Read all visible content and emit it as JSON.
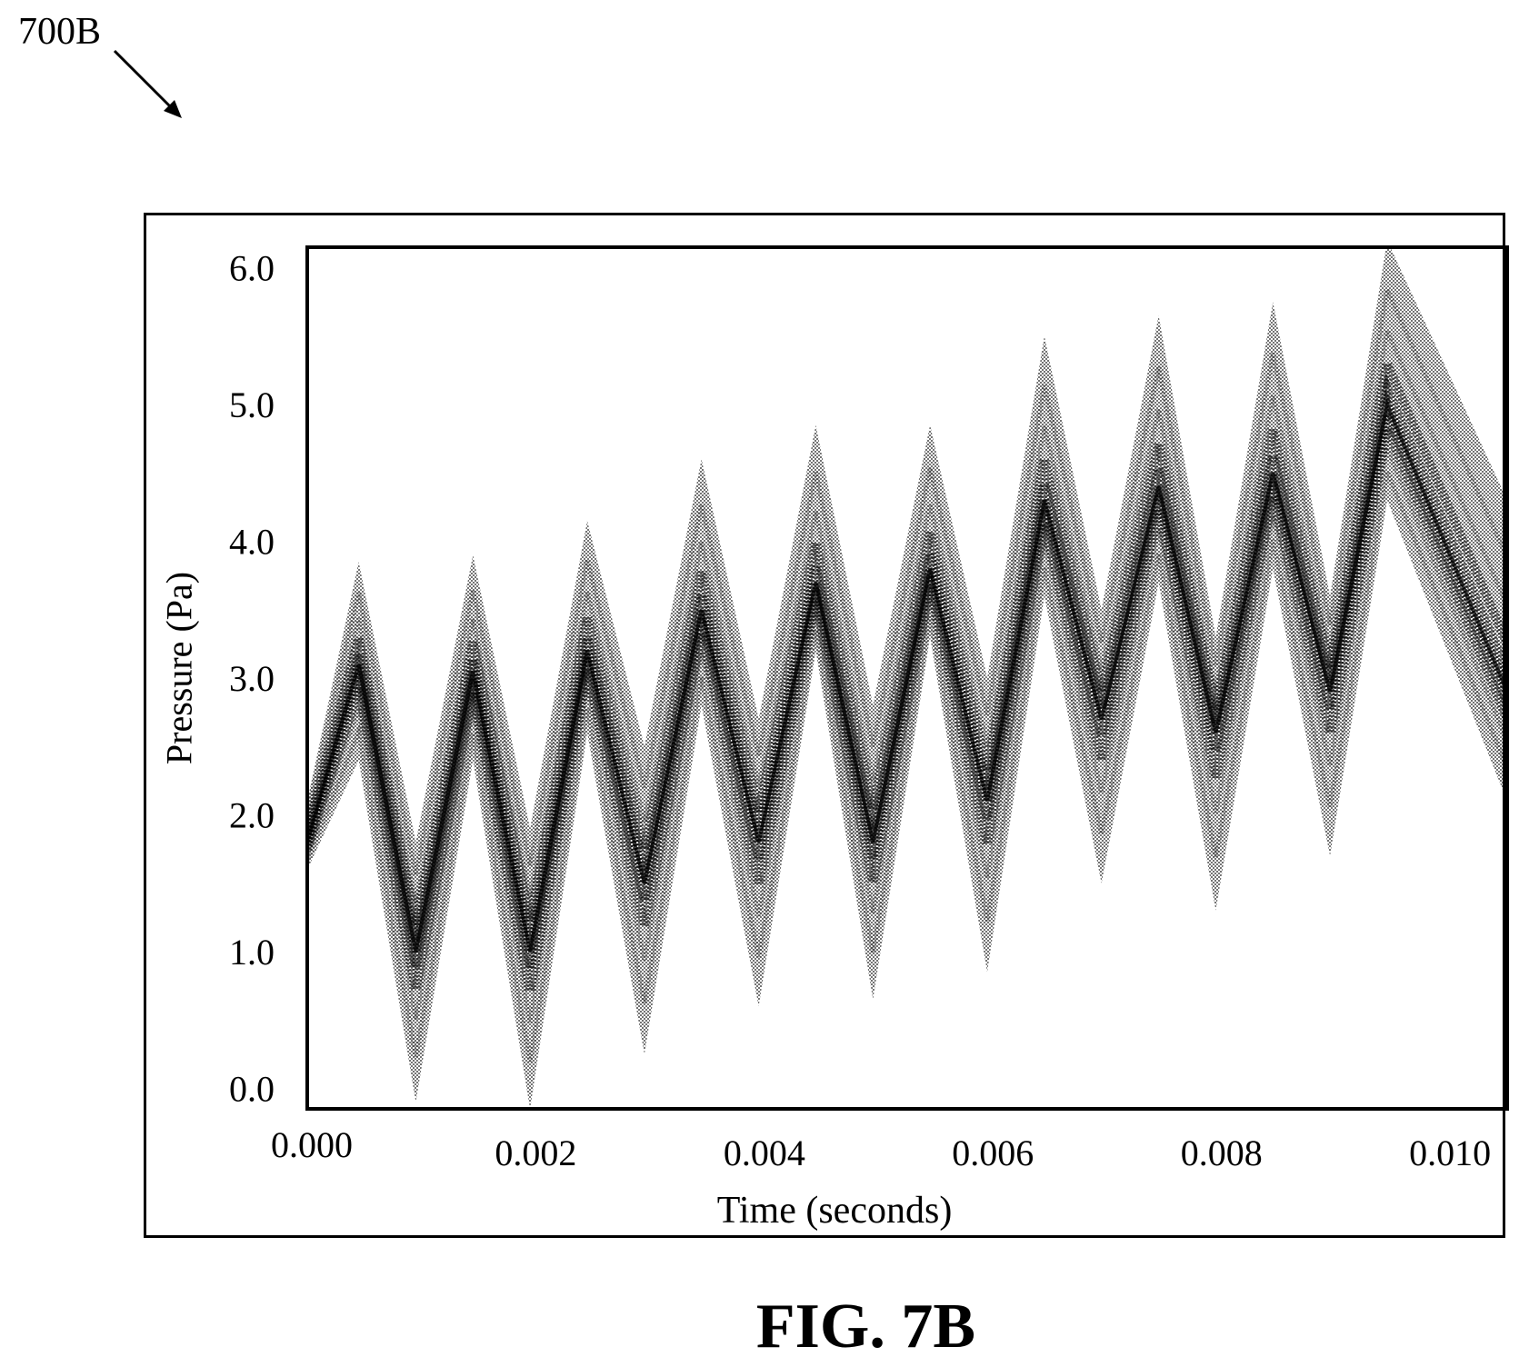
{
  "figure": {
    "reference": "700B",
    "caption": "FIG. 7B"
  },
  "chart_data": {
    "type": "line",
    "title": "",
    "xlabel": "Time (seconds)",
    "ylabel": "Pressure (Pa)",
    "xlim": [
      0.0,
      0.0105
    ],
    "ylim": [
      -0.15,
      6.15
    ],
    "x_ticks": [
      "0.000",
      "0.002",
      "0.004",
      "0.006",
      "0.008",
      "0.010"
    ],
    "y_ticks": [
      "0.0",
      "1.0",
      "2.0",
      "3.0",
      "4.0",
      "5.0",
      "6.0"
    ],
    "grid": false,
    "legend": "none",
    "style": "dense stippled band (many overlaid triangular waveforms)",
    "center_series": {
      "x": [
        0.0,
        0.00045,
        0.00095,
        0.00145,
        0.00195,
        0.00245,
        0.00295,
        0.00345,
        0.00395,
        0.00445,
        0.00495,
        0.00545,
        0.00595,
        0.00645,
        0.00695,
        0.00745,
        0.00795,
        0.00845,
        0.00895,
        0.00945,
        0.0105
      ],
      "y": [
        1.8,
        3.1,
        1.0,
        3.05,
        1.0,
        3.2,
        1.5,
        3.5,
        1.8,
        3.7,
        1.8,
        3.8,
        2.1,
        4.3,
        2.7,
        4.4,
        2.6,
        4.5,
        2.9,
        5.0,
        2.9
      ]
    },
    "upper_envelope": {
      "x": [
        0.0,
        0.00045,
        0.00095,
        0.00145,
        0.00195,
        0.00245,
        0.00295,
        0.00345,
        0.00395,
        0.00445,
        0.00495,
        0.00545,
        0.00595,
        0.00645,
        0.00695,
        0.00745,
        0.00795,
        0.00845,
        0.00895,
        0.00945,
        0.0105
      ],
      "y": [
        2.1,
        3.85,
        1.8,
        3.9,
        1.9,
        4.15,
        2.5,
        4.6,
        2.7,
        4.85,
        2.8,
        4.85,
        3.0,
        5.5,
        3.5,
        5.65,
        3.3,
        5.75,
        3.6,
        6.2,
        4.3
      ]
    },
    "lower_envelope": {
      "x": [
        0.0,
        0.00045,
        0.00095,
        0.00145,
        0.00195,
        0.00245,
        0.00295,
        0.00345,
        0.00395,
        0.00445,
        0.00495,
        0.00545,
        0.00595,
        0.00645,
        0.00695,
        0.00745,
        0.00795,
        0.00845,
        0.00895,
        0.00945,
        0.0105
      ],
      "y": [
        1.6,
        2.4,
        -0.1,
        2.4,
        -0.15,
        2.6,
        0.25,
        2.8,
        0.6,
        3.2,
        0.65,
        3.3,
        0.85,
        3.6,
        1.5,
        3.7,
        1.3,
        3.8,
        1.7,
        4.3,
        2.1
      ]
    }
  }
}
